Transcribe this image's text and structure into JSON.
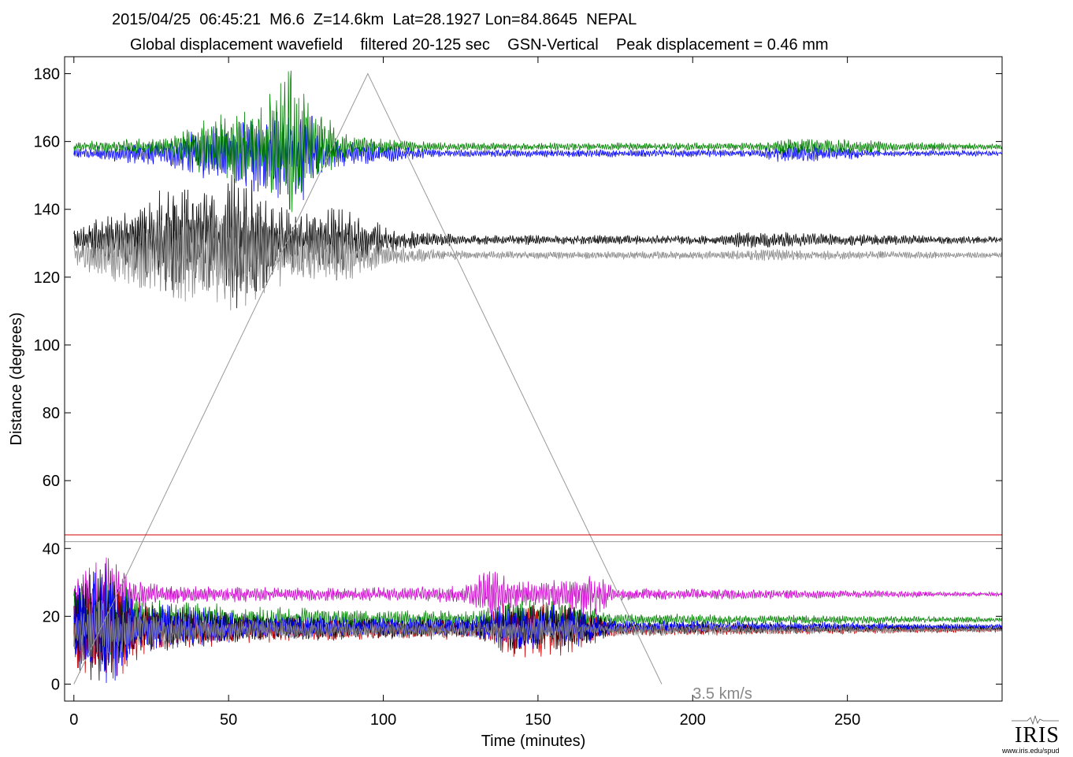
{
  "title_line1": "2015/04/25  06:45:21  M6.6  Z=14.6km  Lat=28.1927 Lon=84.8645  NEPAL",
  "title_line2": "Global displacement wavefield    filtered 20-125 sec    GSN-Vertical    Peak displacement = 0.46 mm",
  "logo": {
    "word": "IRIS",
    "url": "www.iris.edu/spud"
  },
  "chart_data": {
    "type": "line",
    "xlabel": "Time (minutes)",
    "ylabel": "Distance (degrees)",
    "xlim": [
      -3,
      300
    ],
    "ylim": [
      -5,
      185
    ],
    "xticks": [
      0,
      50,
      100,
      150,
      200,
      250
    ],
    "yticks": [
      0,
      20,
      40,
      60,
      80,
      100,
      120,
      140,
      160,
      180
    ],
    "grid": false,
    "reference_lines": [
      {
        "name": "3.5 km/s",
        "color": "#999999",
        "x": [
          0,
          95,
          190
        ],
        "y": [
          0,
          180,
          0
        ]
      }
    ],
    "horizontal_lines": [
      {
        "y": 44,
        "color": "#d00000"
      },
      {
        "y": 42,
        "color": "#999999"
      }
    ],
    "annotations": [
      {
        "text": "3.5 km/s",
        "x": 200,
        "y": -2,
        "color": "#888888"
      }
    ],
    "traces": [
      {
        "color": "#0000ff",
        "baseline": 156.5,
        "envelope": [
          [
            0,
            1.5
          ],
          [
            30,
            4
          ],
          [
            45,
            9
          ],
          [
            60,
            12
          ],
          [
            72,
            16
          ],
          [
            85,
            4
          ],
          [
            120,
            1.2
          ],
          [
            220,
            1.2
          ],
          [
            230,
            3
          ],
          [
            250,
            2
          ],
          [
            260,
            1
          ],
          [
            300,
            0.8
          ]
        ]
      },
      {
        "color": "#008000",
        "baseline": 158.5,
        "envelope": [
          [
            0,
            1.5
          ],
          [
            30,
            3
          ],
          [
            45,
            10
          ],
          [
            60,
            13
          ],
          [
            70,
            26
          ],
          [
            78,
            12
          ],
          [
            90,
            3
          ],
          [
            120,
            1.2
          ],
          [
            220,
            1.2
          ],
          [
            235,
            3
          ],
          [
            255,
            2
          ],
          [
            300,
            0.8
          ]
        ]
      },
      {
        "color": "#000000",
        "baseline": 131,
        "envelope": [
          [
            0,
            4
          ],
          [
            25,
            12
          ],
          [
            30,
            18
          ],
          [
            48,
            14
          ],
          [
            52,
            22
          ],
          [
            70,
            9
          ],
          [
            85,
            10
          ],
          [
            105,
            3
          ],
          [
            130,
            1.5
          ],
          [
            210,
            1.5
          ],
          [
            220,
            3
          ],
          [
            240,
            2
          ],
          [
            300,
            1
          ]
        ]
      },
      {
        "color": "#888888",
        "baseline": 126.5,
        "envelope": [
          [
            0,
            4
          ],
          [
            25,
            12
          ],
          [
            30,
            14
          ],
          [
            48,
            14
          ],
          [
            52,
            18
          ],
          [
            70,
            8
          ],
          [
            85,
            9
          ],
          [
            105,
            2.5
          ],
          [
            130,
            1.2
          ],
          [
            210,
            1.2
          ],
          [
            220,
            2
          ],
          [
            240,
            1.5
          ],
          [
            300,
            0.8
          ]
        ]
      },
      {
        "color": "#cc00cc",
        "baseline": 26.5,
        "envelope": [
          [
            0,
            6
          ],
          [
            5,
            10
          ],
          [
            12,
            12
          ],
          [
            20,
            4
          ],
          [
            40,
            2.5
          ],
          [
            90,
            2
          ],
          [
            125,
            2.5
          ],
          [
            135,
            8
          ],
          [
            145,
            4
          ],
          [
            160,
            5
          ],
          [
            168,
            7
          ],
          [
            175,
            2
          ],
          [
            300,
            0.7
          ]
        ]
      },
      {
        "color": "#008000",
        "baseline": 19,
        "envelope": [
          [
            0,
            10
          ],
          [
            12,
            14
          ],
          [
            25,
            6
          ],
          [
            60,
            4
          ],
          [
            100,
            3
          ],
          [
            130,
            3
          ],
          [
            145,
            6
          ],
          [
            160,
            6
          ],
          [
            175,
            2
          ],
          [
            300,
            0.8
          ]
        ]
      },
      {
        "color": "#cc0000",
        "baseline": 16,
        "envelope": [
          [
            0,
            12
          ],
          [
            12,
            16
          ],
          [
            25,
            7
          ],
          [
            60,
            4
          ],
          [
            100,
            3
          ],
          [
            130,
            3
          ],
          [
            140,
            9
          ],
          [
            160,
            8
          ],
          [
            175,
            2
          ],
          [
            300,
            0.8
          ]
        ]
      },
      {
        "color": "#000000",
        "baseline": 16.5,
        "envelope": [
          [
            0,
            12
          ],
          [
            10,
            20
          ],
          [
            20,
            8
          ],
          [
            60,
            4
          ],
          [
            100,
            3
          ],
          [
            130,
            3
          ],
          [
            140,
            8
          ],
          [
            160,
            7
          ],
          [
            175,
            2
          ],
          [
            300,
            0.8
          ]
        ]
      },
      {
        "color": "#0000ff",
        "baseline": 17,
        "envelope": [
          [
            0,
            12
          ],
          [
            12,
            22
          ],
          [
            20,
            8
          ],
          [
            60,
            4
          ],
          [
            100,
            3
          ],
          [
            130,
            3
          ],
          [
            140,
            7
          ],
          [
            160,
            7
          ],
          [
            175,
            2
          ],
          [
            300,
            0.8
          ]
        ]
      },
      {
        "color": "#888888",
        "baseline": 16,
        "envelope": [
          [
            0,
            8
          ],
          [
            12,
            10
          ],
          [
            25,
            5
          ],
          [
            60,
            3
          ],
          [
            100,
            2.5
          ],
          [
            130,
            2.5
          ],
          [
            150,
            5
          ],
          [
            170,
            2
          ],
          [
            300,
            0.6
          ]
        ]
      }
    ]
  }
}
